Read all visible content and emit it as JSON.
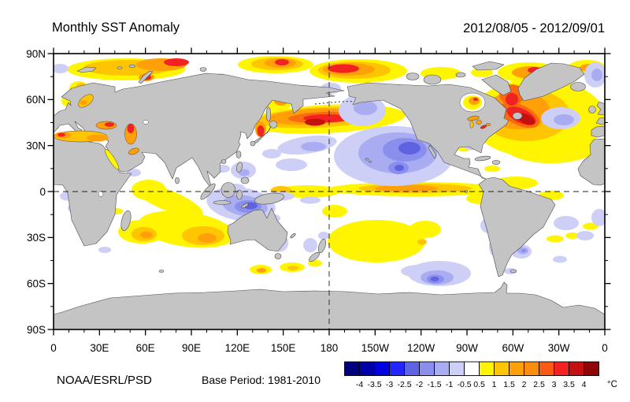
{
  "title": "Monthly SST Anomaly",
  "date_range": "2012/08/05 - 2012/09/01",
  "footer": {
    "credit": "NOAA/ESRL/PSD",
    "credit_color": "#2525DD",
    "base_period": "Base Period: 1981-2010"
  },
  "axes": {
    "lat_labels": [
      "90N",
      "60N",
      "30N",
      "0",
      "30S",
      "60S",
      "90S"
    ],
    "lon_labels": [
      "0",
      "30E",
      "60E",
      "90E",
      "120E",
      "150E",
      "180",
      "150W",
      "120W",
      "90W",
      "60W",
      "30W",
      "0"
    ]
  },
  "colorbar": {
    "unit": "°C",
    "tick_labels": [
      "-4",
      "-3.5",
      "-3",
      "-2.5",
      "-2",
      "-1.5",
      "-1",
      "-0.5",
      "0.5",
      "1",
      "1.5",
      "2",
      "2.5",
      "3",
      "3.5",
      "4"
    ],
    "colors": [
      "#00007F",
      "#0000A8",
      "#0000E0",
      "#2424FF",
      "#5F63E2",
      "#8A8FEE",
      "#A9ACF0",
      "#CDCFF7",
      "#FFFFFF",
      "#FFF500",
      "#FFC503",
      "#FFA008",
      "#FC8D0D",
      "#FA5B14",
      "#F32222",
      "#C60F0F",
      "#8F0606"
    ]
  },
  "chart_data": {
    "type": "heatmap",
    "subtype": "filled_contour_world_map",
    "title": "Monthly SST Anomaly",
    "period": "2012/08/05 - 2012/09/01",
    "variable": "Sea surface temperature anomaly",
    "unit": "°C",
    "base_period": "1981-2010",
    "projection": "equirectangular, longitude 0–360E (map centered on 180)",
    "lon_range_deg": [
      0,
      360
    ],
    "lat_range_deg": [
      -90,
      90
    ],
    "lon_tick_interval_deg": 30,
    "lat_tick_interval_deg": 30,
    "contour_levels_c": [
      -4,
      -3.5,
      -3,
      -2.5,
      -2,
      -1.5,
      -1,
      -0.5,
      0.5,
      1,
      1.5,
      2,
      2.5,
      3,
      3.5,
      4
    ],
    "reference_lines": [
      "equator (0 latitude, dashed)",
      "180 longitude meridian (dashed)"
    ],
    "land_color": "gray (no data over land)",
    "notable_anomalies": [
      {
        "region": "Arctic marginal seas, circumpolar band ~75-80N",
        "anomaly_c": "+1.5 to +3.5"
      },
      {
        "region": "Barents/Kara Seas near Novaya Zemlya",
        "anomaly_c": "+3 to +4"
      },
      {
        "region": "Northwest Pacific east of Japan (~40N, 145-175E)",
        "anomaly_c": "+2 to +4"
      },
      {
        "region": "Bering and Chukchi Seas",
        "anomaly_c": "+2 to +3.5"
      },
      {
        "region": "Northwest Atlantic off Nova Scotia / Gulf of St. Lawrence",
        "anomaly_c": "+3 to +4"
      },
      {
        "region": "Labrador Sea and Hudson Bay",
        "anomaly_c": "+2 to +3"
      },
      {
        "region": "Mediterranean, Black and Caspian Seas",
        "anomaly_c": "+1.5 to +2.5"
      },
      {
        "region": "Central North Atlantic (30-50N)",
        "anomaly_c": "+0.5 to +1.5"
      },
      {
        "region": "Equatorial Pacific just north of equator (160E-110W)",
        "anomaly_c": "+0.5 to +1.5"
      },
      {
        "region": "South Indian Ocean (20-35S, 50-110E)",
        "anomaly_c": "+0.5 to +2"
      },
      {
        "region": "Central South Pacific (15-30S, 140-100W)",
        "anomaly_c": "+0.5 to +1"
      },
      {
        "region": "Northeast Pacific (10-35N, 180-120W)",
        "anomaly_c": "-0.5 to -2"
      },
      {
        "region": "Seas northwest of Australia / Indonesia",
        "anomaly_c": "-0.5 to -2"
      },
      {
        "region": "Southeast Pacific (~55S, 115W)",
        "anomaly_c": "-0.5 to -1.5"
      },
      {
        "region": "Argentine shelf (~40S)",
        "anomaly_c": "-0.5 to -1.5"
      },
      {
        "region": "Greenland/Norwegian Sea and mid North Atlantic (~45N, 35W)",
        "anomaly_c": "-0.5 to -1"
      }
    ]
  }
}
